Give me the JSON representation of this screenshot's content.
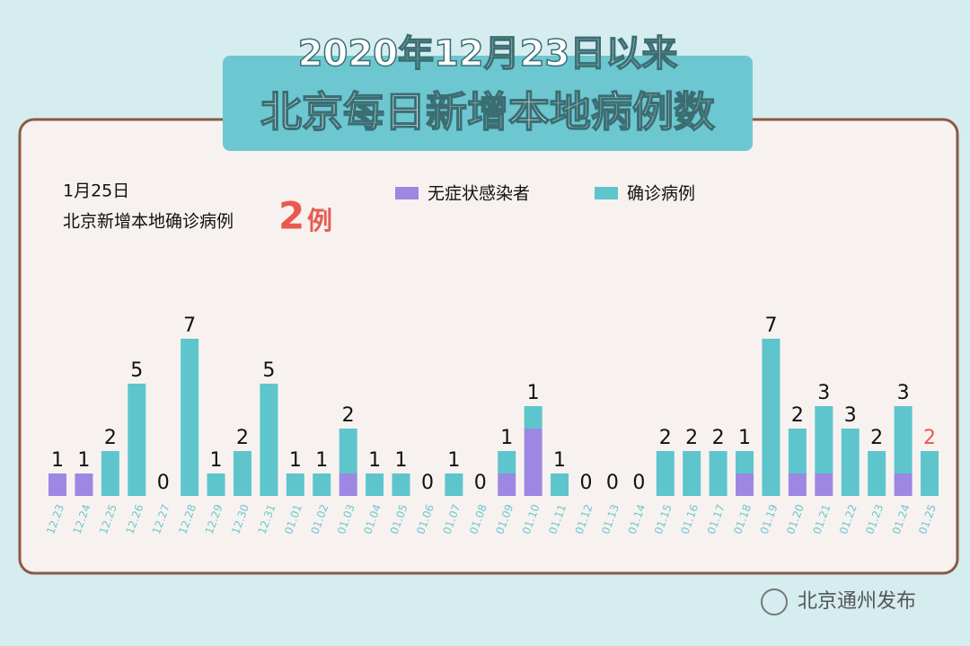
{
  "chart_data": {
    "type": "stacked_bar",
    "title": "2020年12月23日以来",
    "subtitle": "北京每日新增本地病例数",
    "annotation": {
      "date": "1月25日",
      "text": "北京新增本地确诊病例",
      "count": 2,
      "unit": "例"
    },
    "source": "北京通州发布",
    "categories": [
      "12.23",
      "12.24",
      "12.25",
      "12.26",
      "12.27",
      "12.28",
      "12.29",
      "12.30",
      "12.31",
      "01.01",
      "01.02",
      "01.03",
      "01.04",
      "01.05",
      "01.06",
      "01.07",
      "01.08",
      "01.09",
      "01.10",
      "01.11",
      "01.12",
      "01.13",
      "01.14",
      "01.15",
      "01.16",
      "01.17",
      "01.18",
      "01.19",
      "01.20",
      "01.21",
      "01.22",
      "01.23",
      "01.24",
      "01.25"
    ],
    "series": [
      {
        "name": "无症状感染者",
        "color": "#9c88e2",
        "values": [
          1,
          1,
          null,
          null,
          null,
          null,
          null,
          null,
          null,
          null,
          null,
          1,
          null,
          null,
          null,
          null,
          null,
          1,
          3,
          null,
          null,
          null,
          null,
          null,
          null,
          null,
          1,
          null,
          1,
          1,
          null,
          null,
          1,
          null
        ]
      },
      {
        "name": "确诊病例",
        "color": "#5ec5cd",
        "values": [
          null,
          null,
          2,
          5,
          0,
          7,
          1,
          2,
          5,
          1,
          1,
          2,
          1,
          1,
          0,
          1,
          0,
          1,
          1,
          1,
          0,
          0,
          0,
          2,
          2,
          2,
          1,
          7,
          2,
          3,
          3,
          2,
          3,
          2
        ]
      }
    ],
    "highlight_color": "#e85a50"
  }
}
